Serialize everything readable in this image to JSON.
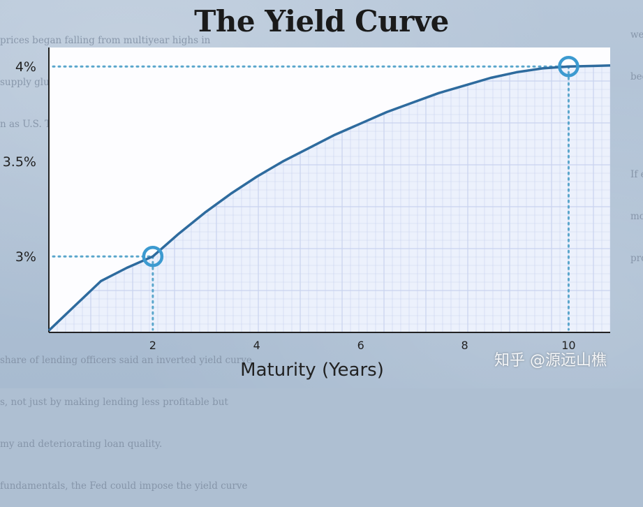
{
  "title": "The Yield Curve",
  "background_text": {
    "top_lines": [
      "prices began falling from multiyear highs in",
      "supply glut. Government-bond yields fell amid a",
      "n as U.S. Treasurys."
    ],
    "bottom_lines": [
      "share of lending officers said an inverted yield curve",
      "s, not just by making lending less profitable but",
      "my and deteriorating loan quality.",
      "fundamentals, the Fed could impose the yield curve"
    ],
    "right_lines": [
      "we",
      "bee",
      "",
      "",
      "If e",
      "mo",
      "pro"
    ]
  },
  "watermark": "知乎 @源远山樵",
  "colors": {
    "curve": "#2e6b9e",
    "highlight": "#3c9ad0",
    "dotted": "#5aa6cc",
    "panel": "#fdfdff",
    "grid": "#c9d3ee",
    "axis": "#222222"
  },
  "chart_data": {
    "type": "line",
    "title": "The Yield Curve",
    "xlabel": "Maturity (Years)",
    "ylabel": "",
    "xlim": [
      0,
      10.8
    ],
    "ylim": [
      2.6,
      4.1
    ],
    "x_ticks": [
      2,
      4,
      6,
      8,
      10
    ],
    "y_ticks": [
      3,
      3.5,
      4
    ],
    "y_tick_labels": [
      "3%",
      "3.5%",
      "4%"
    ],
    "grid": true,
    "series": [
      {
        "x": [
          0,
          0.5,
          1,
          1.5,
          2,
          2.5,
          3,
          3.5,
          4,
          4.5,
          5,
          5.5,
          6,
          6.5,
          7,
          7.5,
          8,
          8.5,
          9,
          9.5,
          10,
          10.5,
          10.8
        ],
        "y": [
          2.61,
          2.74,
          2.87,
          2.94,
          3.0,
          3.12,
          3.23,
          3.33,
          3.42,
          3.5,
          3.57,
          3.64,
          3.7,
          3.76,
          3.81,
          3.86,
          3.9,
          3.94,
          3.97,
          3.99,
          4.0,
          4.003,
          4.005
        ]
      }
    ],
    "highlights": [
      {
        "x": 2,
        "y": 3.0
      },
      {
        "x": 10,
        "y": 4.0
      }
    ]
  }
}
